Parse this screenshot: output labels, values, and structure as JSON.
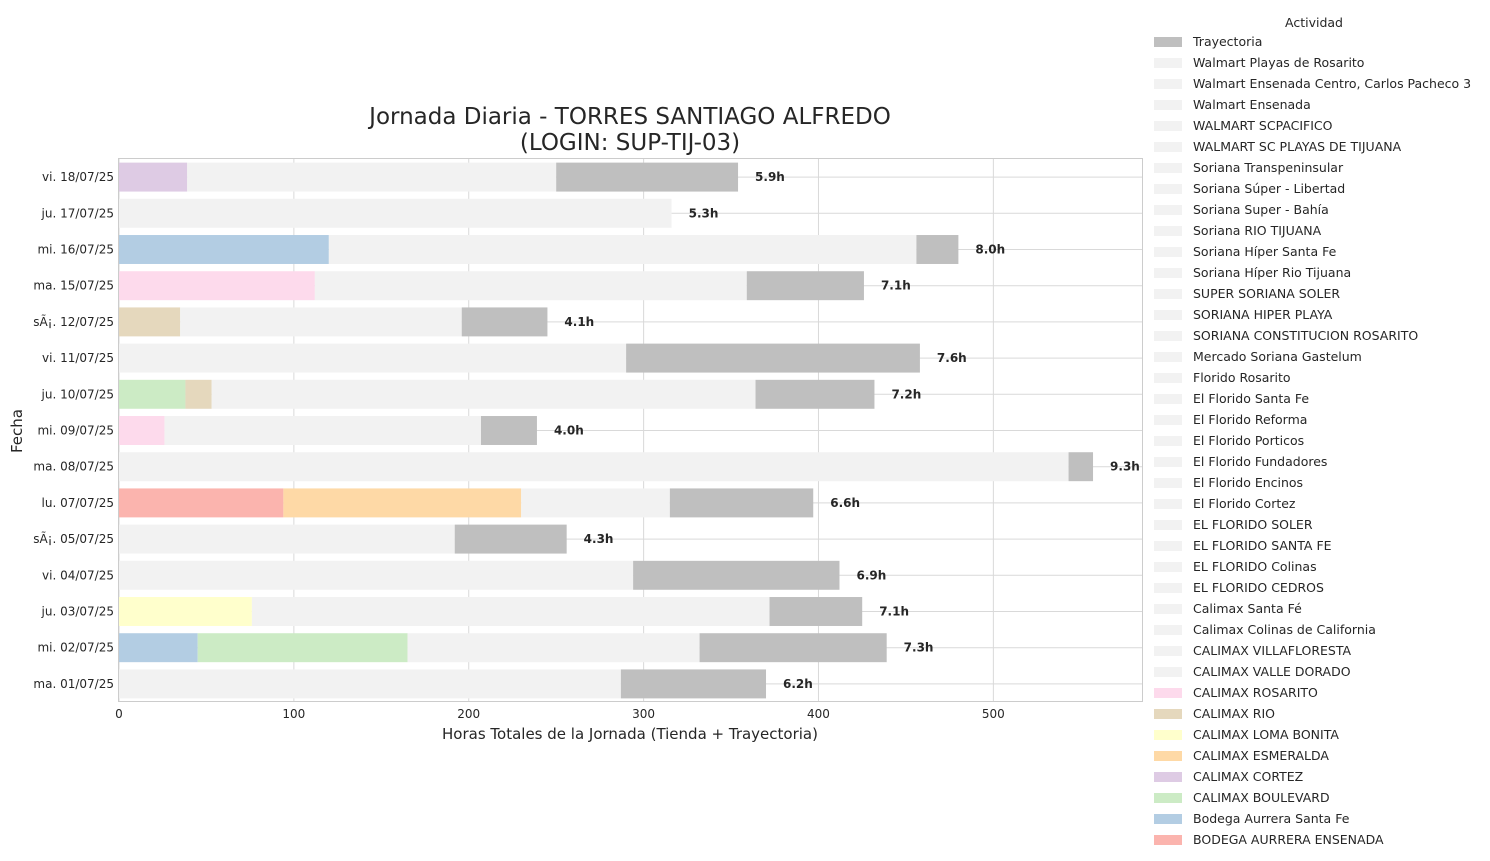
{
  "chart_data": {
    "type": "bar",
    "orientation": "horizontal",
    "stacked": true,
    "title_line1": "Jornada Diaria - TORRES SANTIAGO ALFREDO",
    "title_line2": "(LOGIN: SUP-TIJ-03)",
    "xlabel": "Horas Totales de la Jornada (Tienda + Trayectoria)",
    "ylabel": "Fecha",
    "xlim": [
      0,
      585
    ],
    "xticks": [
      0,
      100,
      200,
      300,
      400,
      500
    ],
    "grid": true,
    "legend_title": "Actividad",
    "legend_position": "outside-right",
    "colors": {
      "trayectoria": "#bfbfbf",
      "other_store": "#f2f2f2",
      "CALIMAX ROSARITO": "#fddaec",
      "CALIMAX RIO": "#e5d8bd",
      "CALIMAX LOMA BONITA": "#ffffcc",
      "CALIMAX ESMERALDA": "#fed9a6",
      "CALIMAX CORTEZ": "#decbe4",
      "CALIMAX BOULEVARD": "#ccebc5",
      "Bodega Aurrera Santa Fe": "#b3cde3",
      "BODEGA AURRERA ENSENADA": "#fbb4ae"
    },
    "legend": [
      "Trayectoria",
      "Walmart Playas de Rosarito",
      "Walmart Ensenada Centro, Carlos Pacheco 3",
      "Walmart Ensenada",
      "WALMART SCPACIFICO",
      "WALMART SC PLAYAS DE TIJUANA",
      "Soriana Transpeninsular",
      "Soriana Súper - Libertad",
      "Soriana Super - Bahía",
      "Soriana RIO TIJUANA",
      "Soriana Híper Santa Fe",
      "Soriana Híper Rio Tijuana",
      "SUPER SORIANA SOLER",
      "SORIANA HIPER PLAYA",
      "SORIANA CONSTITUCION ROSARITO",
      "Mercado Soriana Gastelum",
      "Florido Rosarito",
      "El Florido Santa Fe",
      "El Florido Reforma",
      "El Florido Porticos",
      "El Florido Fundadores",
      "El Florido Encinos",
      "El Florido Cortez",
      "EL FLORIDO SOLER",
      "EL FLORIDO SANTA FE",
      "EL FLORIDO Colinas",
      "EL FLORIDO CEDROS",
      "Calimax Santa Fé",
      "Calimax Colinas de California",
      "CALIMAX VILLAFLORESTA",
      "CALIMAX VALLE DORADO",
      "CALIMAX ROSARITO",
      "CALIMAX RIO",
      "CALIMAX LOMA BONITA",
      "CALIMAX ESMERALDA",
      "CALIMAX CORTEZ",
      "CALIMAX BOULEVARD",
      "Bodega Aurrera Santa Fe",
      "BODEGA AURRERA ENSENADA"
    ],
    "rows": [
      {
        "date": "vi. 18/07/25",
        "total": "5.9h",
        "segments": [
          {
            "act": "CALIMAX CORTEZ",
            "v": 39
          },
          {
            "act": "other",
            "v": 211
          },
          {
            "act": "Trayectoria",
            "v": 104
          }
        ]
      },
      {
        "date": "ju. 17/07/25",
        "total": "5.3h",
        "segments": [
          {
            "act": "other",
            "v": 316
          }
        ]
      },
      {
        "date": "mi. 16/07/25",
        "total": "8.0h",
        "segments": [
          {
            "act": "Bodega Aurrera Santa Fe",
            "v": 120
          },
          {
            "act": "other",
            "v": 336
          },
          {
            "act": "Trayectoria",
            "v": 24
          }
        ]
      },
      {
        "date": "ma. 15/07/25",
        "total": "7.1h",
        "segments": [
          {
            "act": "CALIMAX ROSARITO",
            "v": 112
          },
          {
            "act": "other",
            "v": 247
          },
          {
            "act": "Trayectoria",
            "v": 67
          }
        ]
      },
      {
        "date": "sÃ¡. 12/07/25",
        "total": "4.1h",
        "segments": [
          {
            "act": "CALIMAX RIO",
            "v": 35
          },
          {
            "act": "other",
            "v": 161
          },
          {
            "act": "Trayectoria",
            "v": 49
          }
        ]
      },
      {
        "date": "vi. 11/07/25",
        "total": "7.6h",
        "segments": [
          {
            "act": "other",
            "v": 290
          },
          {
            "act": "Trayectoria",
            "v": 168
          }
        ]
      },
      {
        "date": "ju. 10/07/25",
        "total": "7.2h",
        "segments": [
          {
            "act": "CALIMAX BOULEVARD",
            "v": 38
          },
          {
            "act": "CALIMAX RIO",
            "v": 15
          },
          {
            "act": "other",
            "v": 311
          },
          {
            "act": "Trayectoria",
            "v": 68
          }
        ]
      },
      {
        "date": "mi. 09/07/25",
        "total": "4.0h",
        "segments": [
          {
            "act": "CALIMAX ROSARITO",
            "v": 26
          },
          {
            "act": "other",
            "v": 181
          },
          {
            "act": "Trayectoria",
            "v": 32
          }
        ]
      },
      {
        "date": "ma. 08/07/25",
        "total": "9.3h",
        "segments": [
          {
            "act": "other",
            "v": 543
          },
          {
            "act": "Trayectoria",
            "v": 14
          }
        ]
      },
      {
        "date": "lu. 07/07/25",
        "total": "6.6h",
        "segments": [
          {
            "act": "BODEGA AURRERA ENSENADA",
            "v": 94
          },
          {
            "act": "CALIMAX ESMERALDA",
            "v": 136
          },
          {
            "act": "other",
            "v": 85
          },
          {
            "act": "Trayectoria",
            "v": 82
          }
        ]
      },
      {
        "date": "sÃ¡. 05/07/25",
        "total": "4.3h",
        "segments": [
          {
            "act": "other",
            "v": 192
          },
          {
            "act": "Trayectoria",
            "v": 64
          }
        ]
      },
      {
        "date": "vi. 04/07/25",
        "total": "6.9h",
        "segments": [
          {
            "act": "other",
            "v": 294
          },
          {
            "act": "Trayectoria",
            "v": 118
          }
        ]
      },
      {
        "date": "ju. 03/07/25",
        "total": "7.1h",
        "segments": [
          {
            "act": "CALIMAX LOMA BONITA",
            "v": 76
          },
          {
            "act": "other",
            "v": 296
          },
          {
            "act": "Trayectoria",
            "v": 53
          }
        ]
      },
      {
        "date": "mi. 02/07/25",
        "total": "7.3h",
        "segments": [
          {
            "act": "Bodega Aurrera Santa Fe",
            "v": 45
          },
          {
            "act": "CALIMAX BOULEVARD",
            "v": 120
          },
          {
            "act": "other",
            "v": 167
          },
          {
            "act": "Trayectoria",
            "v": 107
          }
        ]
      },
      {
        "date": "ma. 01/07/25",
        "total": "6.2h",
        "segments": [
          {
            "act": "other",
            "v": 287
          },
          {
            "act": "Trayectoria",
            "v": 83
          }
        ]
      }
    ]
  }
}
